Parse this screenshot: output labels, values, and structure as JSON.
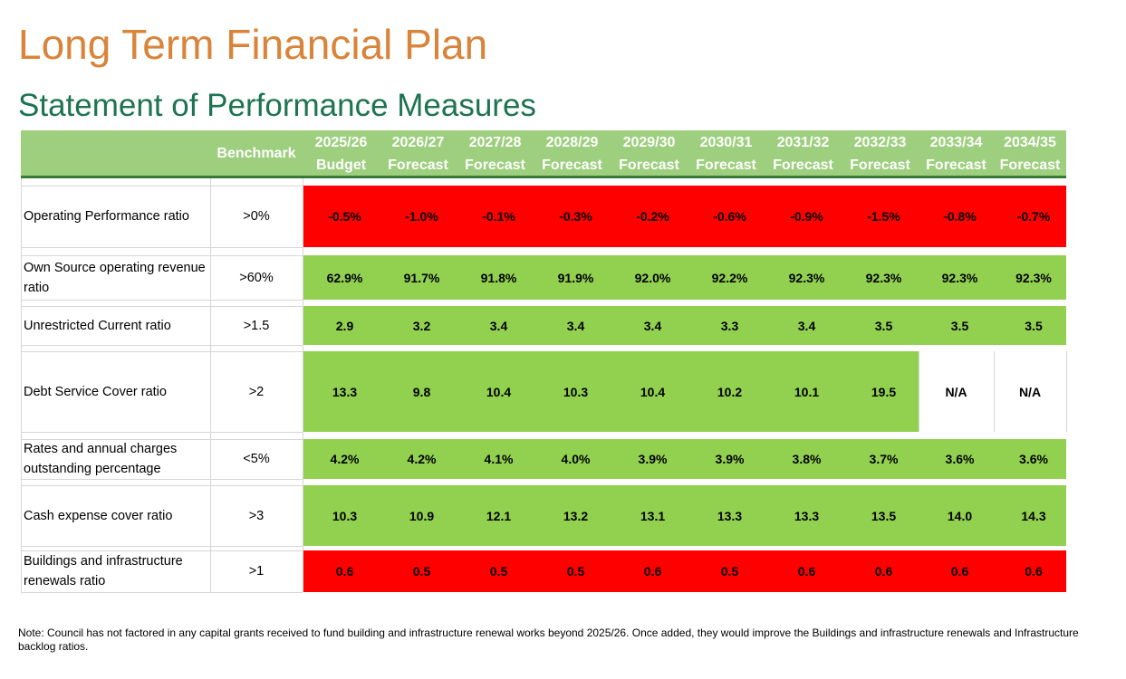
{
  "title": "Long Term Financial Plan",
  "subtitle": "Statement of Performance Measures",
  "colors": {
    "title": "#D9843A",
    "subtitle": "#1D7352",
    "header": "#9DCF7E",
    "pass": "#92D050",
    "fail": "#FF0000"
  },
  "table": {
    "benchmark_header": "Benchmark",
    "columns": [
      {
        "year": "2025/26",
        "type": "Budget"
      },
      {
        "year": "2026/27",
        "type": "Forecast"
      },
      {
        "year": "2027/28",
        "type": "Forecast"
      },
      {
        "year": "2028/29",
        "type": "Forecast"
      },
      {
        "year": "2029/30",
        "type": "Forecast"
      },
      {
        "year": "2030/31",
        "type": "Forecast"
      },
      {
        "year": "2031/32",
        "type": "Forecast"
      },
      {
        "year": "2032/33",
        "type": "Forecast"
      },
      {
        "year": "2033/34",
        "type": "Forecast"
      },
      {
        "year": "2034/35",
        "type": "Forecast"
      }
    ],
    "rows": [
      {
        "label": "Operating Performance ratio",
        "benchmark": ">0%",
        "values": [
          "-0.5%",
          "-1.0%",
          "-0.1%",
          "-0.3%",
          "-0.2%",
          "-0.6%",
          "-0.9%",
          "-1.5%",
          "-0.8%",
          "-0.7%"
        ],
        "status": [
          "fail",
          "fail",
          "fail",
          "fail",
          "fail",
          "fail",
          "fail",
          "fail",
          "fail",
          "fail"
        ]
      },
      {
        "label": "Own Source operating revenue ratio",
        "benchmark": ">60%",
        "values": [
          "62.9%",
          "91.7%",
          "91.8%",
          "91.9%",
          "92.0%",
          "92.2%",
          "92.3%",
          "92.3%",
          "92.3%",
          "92.3%"
        ],
        "status": [
          "pass",
          "pass",
          "pass",
          "pass",
          "pass",
          "pass",
          "pass",
          "pass",
          "pass",
          "pass"
        ]
      },
      {
        "label": "Unrestricted Current ratio",
        "benchmark": ">1.5",
        "values": [
          "2.9",
          "3.2",
          "3.4",
          "3.4",
          "3.4",
          "3.3",
          "3.4",
          "3.5",
          "3.5",
          "3.5"
        ],
        "status": [
          "pass",
          "pass",
          "pass",
          "pass",
          "pass",
          "pass",
          "pass",
          "pass",
          "pass",
          "pass"
        ]
      },
      {
        "label": "Debt Service Cover ratio",
        "benchmark": ">2",
        "values": [
          "13.3",
          "9.8",
          "10.4",
          "10.3",
          "10.4",
          "10.2",
          "10.1",
          "19.5",
          "N/A",
          "N/A"
        ],
        "status": [
          "pass",
          "pass",
          "pass",
          "pass",
          "pass",
          "pass",
          "pass",
          "pass",
          "none",
          "none"
        ]
      },
      {
        "label": "Rates and annual charges outstanding percentage",
        "benchmark": "<5%",
        "values": [
          "4.2%",
          "4.2%",
          "4.1%",
          "4.0%",
          "3.9%",
          "3.9%",
          "3.8%",
          "3.7%",
          "3.6%",
          "3.6%"
        ],
        "status": [
          "pass",
          "pass",
          "pass",
          "pass",
          "pass",
          "pass",
          "pass",
          "pass",
          "pass",
          "pass"
        ]
      },
      {
        "label": "Cash expense cover ratio",
        "benchmark": ">3",
        "values": [
          "10.3",
          "10.9",
          "12.1",
          "13.2",
          "13.1",
          "13.3",
          "13.3",
          "13.5",
          "14.0",
          "14.3"
        ],
        "status": [
          "pass",
          "pass",
          "pass",
          "pass",
          "pass",
          "pass",
          "pass",
          "pass",
          "pass",
          "pass"
        ]
      },
      {
        "label": "Buildings and infrastructure renewals ratio",
        "benchmark": ">1",
        "values": [
          "0.6",
          "0.5",
          "0.5",
          "0.5",
          "0.6",
          "0.5",
          "0.6",
          "0.6",
          "0.6",
          "0.6"
        ],
        "status": [
          "fail",
          "fail",
          "fail",
          "fail",
          "fail",
          "fail",
          "fail",
          "fail",
          "fail",
          "fail"
        ]
      }
    ]
  },
  "note": "Note: Council has not factored in any capital grants received to fund building and infrastructure renewal works beyond 2025/26. Once added, they would improve the Buildings and infrastructure renewals and Infrastructure backlog ratios."
}
